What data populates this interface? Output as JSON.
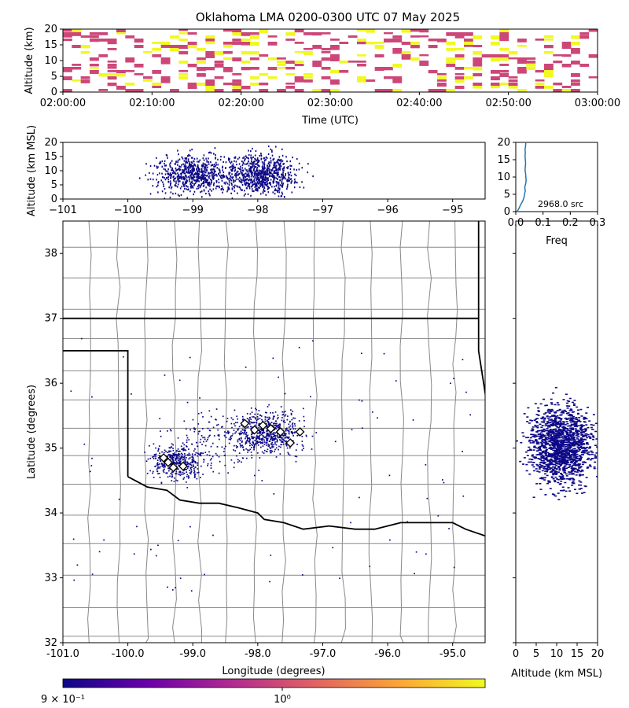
{
  "title": "Oklahoma LMA 0200-0300 UTC 07 May 2025",
  "chart_data": [
    {
      "type": "heatmap",
      "name": "time-altitude",
      "xlabel": "Time (UTC)",
      "ylabel": "Altitude (km)",
      "xticks": [
        "02:00:00",
        "02:10:00",
        "02:20:00",
        "02:30:00",
        "02:40:00",
        "02:50:00",
        "03:00:00"
      ],
      "yticks": [
        "0",
        "5",
        "10",
        "15",
        "20"
      ],
      "xlim": [
        "02:00:00",
        "03:00:00"
      ],
      "ylim": [
        0,
        20
      ]
    },
    {
      "type": "scatter",
      "name": "longitude-altitude",
      "ylabel": "Altitude (km MSL)",
      "xticks": [
        "−101",
        "−100",
        "−99",
        "−98",
        "−97",
        "−96",
        "−95"
      ],
      "yticks": [
        "0",
        "5",
        "10",
        "15",
        "20"
      ],
      "xlim": [
        -101.0,
        -94.5
      ],
      "ylim": [
        0,
        20
      ]
    },
    {
      "type": "line",
      "name": "altitude-histogram",
      "xlabel": "Freq",
      "xticks": [
        "0.0",
        "0.1",
        "0.2",
        "0.3"
      ],
      "yticks": [
        "0",
        "5",
        "10",
        "15",
        "20"
      ],
      "annotation": "2968.0 src",
      "xlim": [
        0,
        0.3
      ],
      "ylim": [
        0,
        20
      ],
      "x": [
        0.005,
        0.012,
        0.018,
        0.025,
        0.03,
        0.032,
        0.035,
        0.033,
        0.036,
        0.038,
        0.037,
        0.036,
        0.034,
        0.035,
        0.036,
        0.035,
        0.034,
        0.035,
        0.034,
        0.036,
        0.037
      ],
      "y": [
        0,
        1,
        2,
        3,
        4,
        5,
        6,
        7,
        8,
        9,
        10,
        11,
        12,
        13,
        14,
        15,
        16,
        17,
        18,
        19,
        20
      ]
    },
    {
      "type": "scatter",
      "name": "plan-view",
      "xlabel": "Longitude (degrees)",
      "ylabel": "Latitude (degrees)",
      "xticks": [
        "-101.0",
        "-100.0",
        "-99.0",
        "-98.0",
        "-97.0",
        "-96.0",
        "-95.0"
      ],
      "yticks": [
        "32",
        "33",
        "34",
        "35",
        "36",
        "37",
        "38"
      ],
      "xlim": [
        -101.0,
        -94.5
      ],
      "ylim": [
        32.0,
        38.5
      ],
      "stations": [
        [
          -99.45,
          34.85
        ],
        [
          -99.38,
          34.78
        ],
        [
          -99.3,
          34.7
        ],
        [
          -99.15,
          34.72
        ],
        [
          -98.05,
          35.28
        ],
        [
          -97.92,
          35.35
        ],
        [
          -97.8,
          35.3
        ],
        [
          -97.65,
          35.25
        ],
        [
          -97.5,
          35.08
        ],
        [
          -97.35,
          35.25
        ],
        [
          -98.2,
          35.38
        ]
      ]
    },
    {
      "type": "scatter",
      "name": "altitude-latitude",
      "xlabel": "Altitude (km MSL)",
      "xticks": [
        "0",
        "5",
        "10",
        "15",
        "20"
      ],
      "xlim": [
        0,
        20
      ],
      "ylim": [
        32.0,
        38.5
      ]
    }
  ],
  "colorbar": {
    "colors": [
      "#0d0887",
      "#6a00a8",
      "#b12a90",
      "#e16462",
      "#fca636",
      "#f0f921"
    ],
    "label_min": "9 × 10⁻¹",
    "label_mid": "10⁰"
  },
  "colors": {
    "source": "#0d0887",
    "hist_line": "#1f77b4",
    "yellow": "#f0f921",
    "pink": "#cc4778",
    "border": "#000000",
    "county": "#888888"
  }
}
